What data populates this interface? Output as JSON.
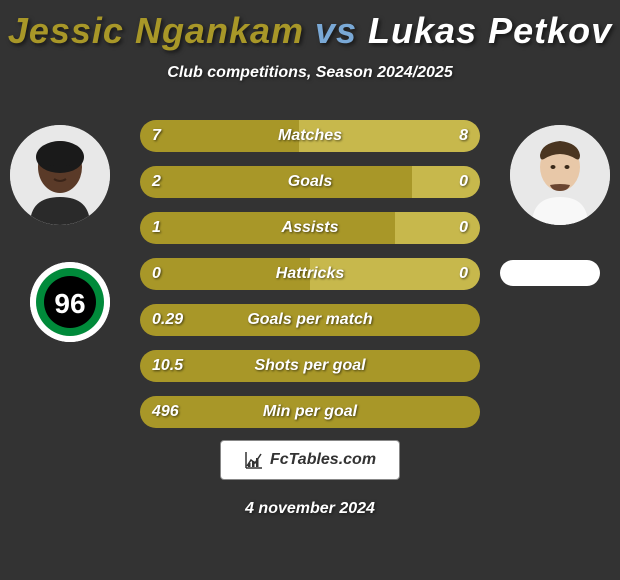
{
  "title": {
    "player1": "Jessic Ngankam",
    "vs": " vs ",
    "player2": "Lukas Petkov",
    "player1_color": "#a89728",
    "vs_color": "#7aa9d6",
    "player2_color": "#ffffff"
  },
  "subtitle": "Club competitions, Season 2024/2025",
  "colors": {
    "background": "#333333",
    "left_segment": "#a89728",
    "right_segment": "#c7b84c",
    "text": "#ffffff"
  },
  "bars": [
    {
      "label": "Matches",
      "left": "7",
      "right": "8",
      "left_pct": 46.7
    },
    {
      "label": "Goals",
      "left": "2",
      "right": "0",
      "left_pct": 80.0
    },
    {
      "label": "Assists",
      "left": "1",
      "right": "0",
      "left_pct": 75.0
    },
    {
      "label": "Hattricks",
      "left": "0",
      "right": "0",
      "left_pct": 50.0
    },
    {
      "label": "Goals per match",
      "left": "0.29",
      "right": "",
      "left_pct": 100.0
    },
    {
      "label": "Shots per goal",
      "left": "10.5",
      "right": "",
      "left_pct": 100.0
    },
    {
      "label": "Min per goal",
      "left": "496",
      "right": "",
      "left_pct": 100.0
    }
  ],
  "footer_brand": "FcTables.com",
  "date": "4 november 2024",
  "club_left": {
    "outer_color": "#008a3a",
    "inner_color": "#000000",
    "text": "96",
    "text_color": "#ffffff"
  }
}
